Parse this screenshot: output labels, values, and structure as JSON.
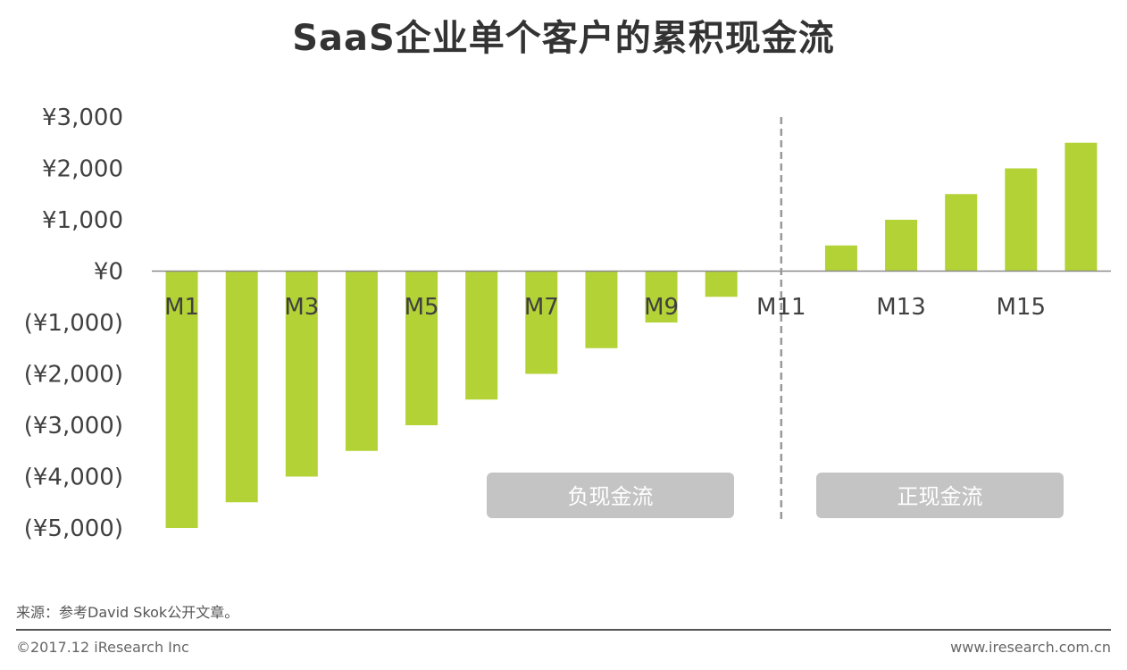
{
  "header": {
    "title": "SaaS企业单个客户的累积现金流"
  },
  "chart_data": {
    "type": "bar",
    "title": "SaaS企业单个客户的累积现金流",
    "categories": [
      "M1",
      "M2",
      "M3",
      "M4",
      "M5",
      "M6",
      "M7",
      "M8",
      "M9",
      "M10",
      "M11",
      "M12",
      "M13",
      "M14",
      "M15",
      "M16"
    ],
    "category_labels_shown": [
      "M1",
      "",
      "M3",
      "",
      "M5",
      "",
      "M7",
      "",
      "M9",
      "",
      "M11",
      "",
      "M13",
      "",
      "M15",
      ""
    ],
    "series": [
      {
        "values": [
          -5000,
          -4500,
          -4000,
          -3500,
          -3000,
          -2500,
          -2000,
          -1500,
          -1000,
          -500,
          0,
          500,
          1000,
          1500,
          2000,
          2500
        ]
      }
    ],
    "ylim": [
      -5000,
      3000
    ],
    "yticks": [
      3000,
      2000,
      1000,
      0,
      -1000,
      -2000,
      -3000,
      -4000,
      -5000
    ],
    "ytick_labels": [
      "¥3,000",
      "¥2,000",
      "¥1,000",
      "¥0",
      "(¥1,000)",
      "(¥2,000)",
      "(¥3,000)",
      "(¥4,000)",
      "(¥5,000)"
    ],
    "xlabel": "",
    "ylabel": "",
    "grid": false,
    "divider_after_category": "M11",
    "annotations": [
      {
        "text": "负现金流",
        "region": "negative"
      },
      {
        "text": "正现金流",
        "region": "positive"
      }
    ],
    "colors": {
      "bar": "#b3d236",
      "axis": "#8c8c8c",
      "divider": "#999999",
      "annotation_bg": "#c4c4c4",
      "annotation_text": "#ffffff"
    }
  },
  "footer": {
    "source": "来源：参考David Skok公开文章。",
    "copyright": "©2017.12 iResearch Inc",
    "site": "www.iresearch.com.cn"
  }
}
